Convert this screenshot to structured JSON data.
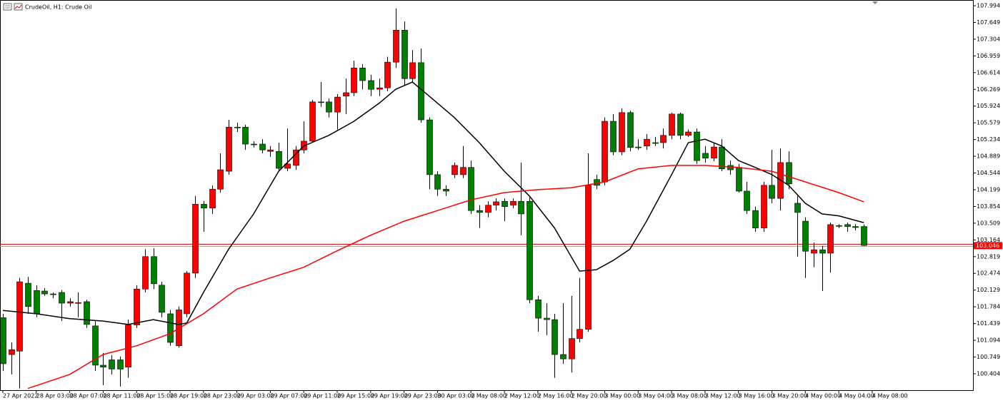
{
  "chart_data": {
    "type": "candlestick",
    "title": "CrudeOil, H1:  Crude Oil",
    "up_color": "#ff0000",
    "down_color": "#008000",
    "open": [
      101.56,
      100.8,
      100.87,
      102.27,
      102.12,
      102.11,
      102.05,
      102.08,
      101.86,
      101.86,
      101.89,
      101.39,
      100.58,
      100.69,
      100.69,
      100.54,
      101.41,
      102.15,
      102.82,
      102.23,
      101.64,
      100.98,
      101.64,
      102.48,
      103.9,
      103.82,
      104.21,
      104.58,
      105.49,
      105.49,
      105.14,
      105.14,
      104.99,
      104.99,
      104.64,
      104.7,
      105.02,
      105.2,
      106.01,
      106.01,
      105.8,
      106.13,
      106.2,
      106.71,
      106.45,
      106.27,
      106.3,
      106.83,
      107.49,
      106.49,
      106.82,
      105.64,
      104.51,
      104.21,
      104.51,
      104.51,
      104.66,
      103.77,
      103.73,
      103.88,
      103.96,
      103.88,
      103.96,
      103.96,
      101.93,
      101.55,
      101.52,
      100.8,
      100.71,
      101.13,
      101.32,
      104.41,
      104.36,
      105.61,
      104.98,
      105.79,
      105.08,
      105.1,
      105.17,
      105.17,
      105.32,
      105.76,
      105.32,
      105.39,
      104.95,
      104.85,
      105.08,
      104.7,
      104.66,
      104.17,
      103.77,
      103.41,
      104.29,
      104.02,
      104.76,
      103.92,
      103.55,
      102.89,
      102.96,
      102.89,
      103.46,
      103.48,
      103.44,
      103.44
    ],
    "high": [
      101.64,
      101.05,
      102.38,
      102.4,
      102.23,
      102.17,
      102.08,
      102.13,
      101.96,
      102.08,
      101.93,
      101.49,
      100.83,
      100.79,
      100.76,
      101.52,
      102.23,
      102.97,
      102.99,
      102.3,
      101.72,
      101.79,
      102.52,
      104.07,
      103.97,
      104.29,
      104.95,
      105.64,
      105.58,
      105.54,
      105.2,
      105.24,
      105.1,
      105.17,
      105.46,
      105.1,
      105.61,
      106.05,
      106.42,
      106.08,
      106.17,
      106.49,
      106.86,
      106.79,
      106.57,
      106.49,
      106.94,
      107.94,
      107.67,
      107.08,
      107.11,
      105.69,
      104.58,
      104.29,
      104.76,
      105.1,
      104.8,
      103.88,
      103.96,
      104.02,
      104.02,
      104.02,
      104.76,
      104.07,
      102.01,
      101.86,
      101.64,
      101.86,
      102.01,
      102.38,
      104.95,
      104.51,
      105.69,
      105.76,
      105.88,
      105.83,
      105.24,
      105.35,
      105.29,
      105.46,
      105.79,
      105.79,
      105.44,
      105.46,
      105.1,
      105.17,
      105.24,
      104.8,
      104.73,
      104.36,
      103.85,
      104.36,
      105.02,
      105.05,
      104.99,
      104.07,
      103.63,
      103.11,
      103.04,
      103.52,
      103.49,
      103.52,
      103.49,
      103.48
    ],
    "low": [
      100.46,
      100.39,
      100.1,
      101.64,
      101.57,
      102.01,
      101.96,
      101.49,
      101.79,
      101.57,
      101.35,
      100.46,
      100.17,
      100.39,
      100.14,
      100.32,
      101.35,
      102.08,
      102.15,
      101.57,
      100.98,
      100.94,
      101.57,
      102.38,
      103.33,
      103.7,
      104.14,
      104.51,
      105.39,
      105.02,
      105.07,
      104.95,
      104.88,
      104.58,
      104.58,
      104.61,
      104.95,
      105.17,
      105.91,
      105.69,
      105.44,
      105.76,
      106.13,
      106.27,
      106.13,
      106.13,
      106.23,
      106.71,
      106.35,
      106.42,
      105.58,
      104.21,
      104.07,
      104.07,
      104.44,
      104.44,
      103.7,
      103.41,
      103.63,
      103.77,
      103.55,
      103.82,
      103.26,
      101.86,
      101.27,
      101.2,
      100.32,
      100.61,
      100.43,
      101.05,
      101.27,
      104.21,
      104.29,
      104.91,
      104.91,
      104.99,
      105.02,
      105.02,
      105.1,
      105.05,
      105.24,
      105.24,
      105.29,
      104.73,
      104.76,
      104.79,
      104.58,
      104.51,
      104.14,
      103.7,
      103.33,
      103.33,
      103.92,
      103.77,
      104.21,
      102.82,
      102.38,
      102.6,
      102.11,
      102.49,
      103.41,
      103.33,
      103.36,
      103.04
    ],
    "close": [
      100.61,
      100.9,
      102.3,
      101.79,
      101.64,
      102.05,
      102.04,
      101.86,
      101.89,
      101.87,
      101.42,
      100.58,
      100.54,
      100.5,
      100.5,
      101.41,
      102.15,
      102.82,
      102.26,
      101.67,
      101.05,
      101.72,
      102.48,
      103.9,
      103.82,
      104.21,
      104.61,
      105.49,
      105.48,
      105.14,
      105.13,
      105.02,
      105.02,
      104.64,
      104.73,
      105.02,
      105.2,
      106.01,
      106.0,
      105.8,
      106.11,
      106.2,
      106.71,
      106.45,
      106.27,
      106.3,
      106.83,
      107.49,
      106.49,
      106.82,
      105.64,
      104.51,
      104.21,
      104.17,
      104.7,
      104.66,
      103.77,
      103.73,
      103.88,
      103.95,
      103.85,
      103.96,
      103.7,
      101.93,
      101.55,
      101.52,
      100.8,
      100.71,
      101.13,
      101.32,
      104.29,
      104.29,
      105.61,
      104.98,
      105.79,
      105.07,
      105.07,
      105.24,
      105.16,
      105.32,
      105.76,
      105.32,
      105.39,
      104.8,
      104.85,
      105.08,
      104.63,
      104.61,
      104.17,
      103.77,
      103.41,
      104.29,
      104.02,
      104.76,
      104.32,
      103.73,
      102.93,
      102.96,
      102.89,
      103.48,
      103.45,
      103.44,
      103.42,
      103.05
    ],
    "lines": [
      {
        "color": "#000000",
        "x": [
          0,
          4,
          8,
          12,
          15,
          18,
          21,
          22,
          24,
          27,
          30,
          33,
          36,
          39,
          42,
          45,
          47,
          49,
          51,
          54,
          57,
          60,
          63,
          66,
          69,
          71,
          73,
          75,
          77,
          80,
          82,
          84,
          86,
          88,
          90,
          92,
          94,
          96,
          98,
          100,
          103
        ],
        "values": [
          101.71,
          101.64,
          101.54,
          101.49,
          101.42,
          101.52,
          101.42,
          101.45,
          102.08,
          102.97,
          103.7,
          104.58,
          105.1,
          105.32,
          105.61,
          105.98,
          106.27,
          106.42,
          106.13,
          105.69,
          105.17,
          104.58,
          104.07,
          103.41,
          102.52,
          102.55,
          102.74,
          102.97,
          103.55,
          104.51,
          105.17,
          105.24,
          105.1,
          104.8,
          104.66,
          104.51,
          104.29,
          103.92,
          103.7,
          103.66,
          103.52
        ]
      },
      {
        "color": "#ff0000",
        "x": [
          3,
          8,
          12,
          16,
          20,
          24,
          28,
          32,
          36,
          40,
          44,
          48,
          52,
          56,
          60,
          64,
          68,
          72,
          76,
          80,
          84,
          88,
          92,
          96,
          100,
          103
        ],
        "values": [
          100.1,
          100.39,
          100.8,
          100.98,
          101.23,
          101.64,
          102.15,
          102.38,
          102.6,
          102.94,
          103.26,
          103.55,
          103.77,
          103.99,
          104.14,
          104.2,
          104.24,
          104.36,
          104.63,
          104.7,
          104.7,
          104.66,
          104.58,
          104.36,
          104.14,
          103.95
        ]
      }
    ],
    "last_price": 103.046,
    "ylim": [
      100.065,
      108.112
    ],
    "yticks": [
      107.994,
      107.649,
      107.304,
      106.959,
      106.614,
      106.269,
      105.924,
      105.579,
      105.234,
      104.889,
      104.544,
      104.199,
      103.854,
      103.509,
      103.164,
      102.819,
      102.474,
      102.129,
      101.784,
      101.439,
      101.094,
      100.749,
      100.404
    ],
    "xlim": [
      -0.34,
      116.06
    ],
    "xticks": [
      {
        "value": 0,
        "label": "27 Apr 2022"
      },
      {
        "value": 4,
        "label": "28 Apr 03:00"
      },
      {
        "value": 8,
        "label": "28 Apr 07:00"
      },
      {
        "value": 12,
        "label": "28 Apr 11:00"
      },
      {
        "value": 16,
        "label": "28 Apr 15:00"
      },
      {
        "value": 20,
        "label": "28 Apr 19:00"
      },
      {
        "value": 24,
        "label": "28 Apr 23:00"
      },
      {
        "value": 28,
        "label": "29 Apr 03:00"
      },
      {
        "value": 32,
        "label": "29 Apr 07:00"
      },
      {
        "value": 36,
        "label": "29 Apr 11:00"
      },
      {
        "value": 40,
        "label": "29 Apr 15:00"
      },
      {
        "value": 44,
        "label": "29 Apr 19:00"
      },
      {
        "value": 48,
        "label": "29 Apr 23:00"
      },
      {
        "value": 52,
        "label": "30 Apr 03:00"
      },
      {
        "value": 56,
        "label": "2 May 08:00"
      },
      {
        "value": 60,
        "label": "2 May 12:00"
      },
      {
        "value": 64,
        "label": "2 May 16:00"
      },
      {
        "value": 68,
        "label": "2 May 20:00"
      },
      {
        "value": 72,
        "label": "3 May 00:00"
      },
      {
        "value": 76,
        "label": "3 May 04:00"
      },
      {
        "value": 80,
        "label": "3 May 08:00"
      },
      {
        "value": 84,
        "label": "3 May 12:00"
      },
      {
        "value": 88,
        "label": "3 May 16:00"
      },
      {
        "value": 92,
        "label": "3 May 20:00"
      },
      {
        "value": 96,
        "label": "4 May 00:00"
      },
      {
        "value": 100,
        "label": "4 May 04:00"
      },
      {
        "value": 104,
        "label": "4 May 08:00"
      }
    ]
  }
}
